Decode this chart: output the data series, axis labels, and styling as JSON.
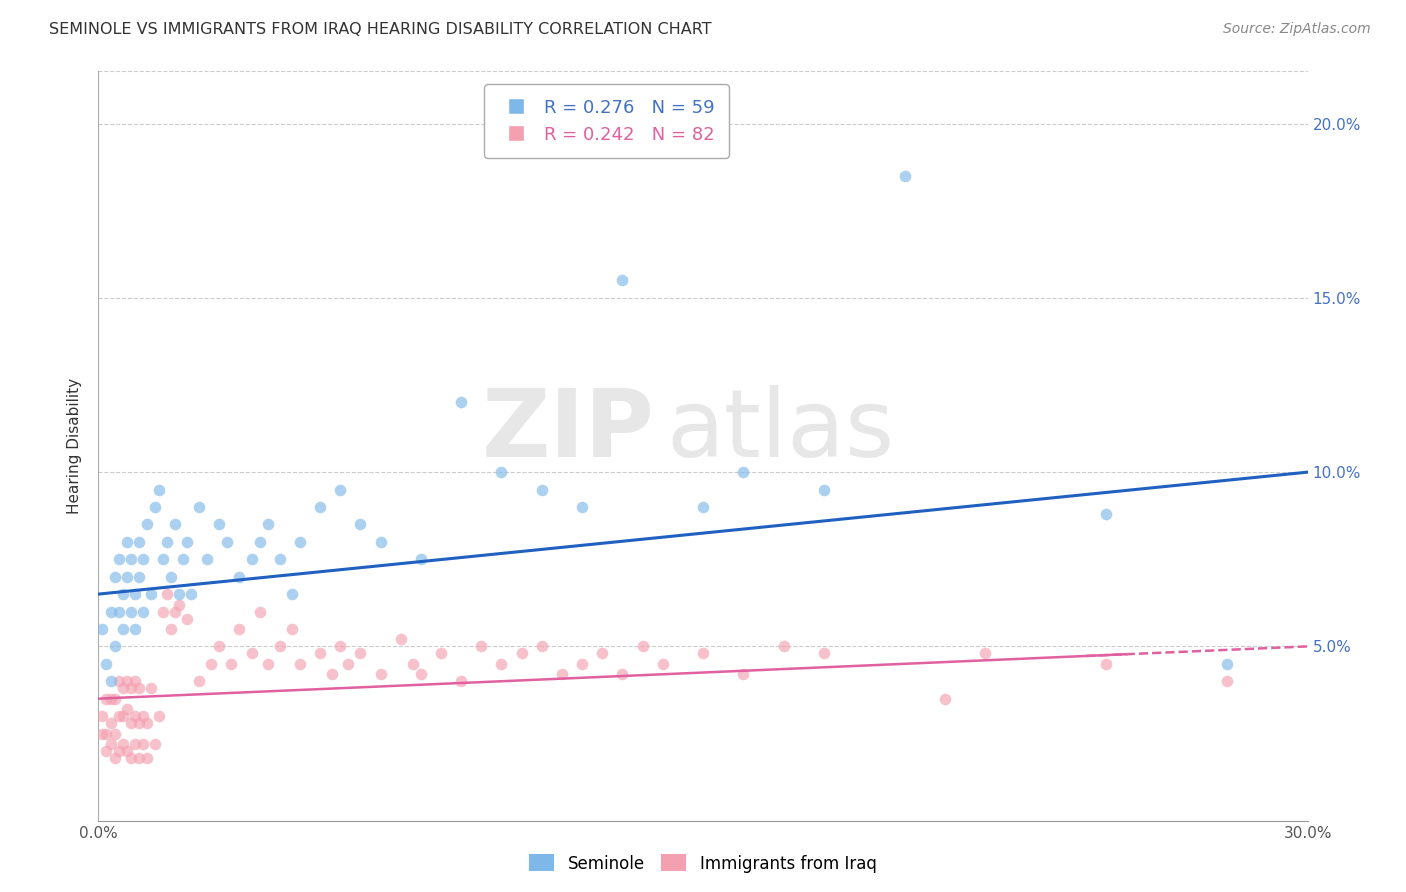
{
  "title": "SEMINOLE VS IMMIGRANTS FROM IRAQ HEARING DISABILITY CORRELATION CHART",
  "source": "Source: ZipAtlas.com",
  "ylabel": "Hearing Disability",
  "xlim": [
    0.0,
    0.3
  ],
  "ylim": [
    0.0,
    0.215
  ],
  "xticks": [
    0.0,
    0.05,
    0.1,
    0.15,
    0.2,
    0.25,
    0.3
  ],
  "yticks": [
    0.0,
    0.05,
    0.1,
    0.15,
    0.2
  ],
  "xtick_labels": [
    "0.0%",
    "",
    "",
    "",
    "",
    "",
    "30.0%"
  ],
  "ytick_right_labels": [
    "",
    "5.0%",
    "10.0%",
    "15.0%",
    "20.0%"
  ],
  "legend_blue_r": "R = 0.276",
  "legend_blue_n": "N = 59",
  "legend_pink_r": "R = 0.242",
  "legend_pink_n": "N = 82",
  "blue_color": "#7EB8E8",
  "pink_color": "#F4A0B0",
  "blue_line_color": "#2060C0",
  "pink_line_color": "#E060A0",
  "watermark_zip": "ZIP",
  "watermark_atlas": "atlas",
  "blue_line_start_y": 0.065,
  "blue_line_end_y": 0.1,
  "pink_line_start_y": 0.035,
  "pink_line_end_y": 0.05,
  "blue_scatter_x": [
    0.001,
    0.002,
    0.003,
    0.003,
    0.004,
    0.004,
    0.005,
    0.005,
    0.006,
    0.006,
    0.007,
    0.007,
    0.008,
    0.008,
    0.009,
    0.009,
    0.01,
    0.01,
    0.011,
    0.011,
    0.012,
    0.013,
    0.014,
    0.015,
    0.016,
    0.017,
    0.018,
    0.019,
    0.02,
    0.021,
    0.022,
    0.023,
    0.025,
    0.027,
    0.03,
    0.032,
    0.035,
    0.038,
    0.04,
    0.042,
    0.045,
    0.048,
    0.05,
    0.055,
    0.06,
    0.065,
    0.07,
    0.08,
    0.09,
    0.1,
    0.11,
    0.12,
    0.13,
    0.15,
    0.16,
    0.18,
    0.2,
    0.25,
    0.28
  ],
  "blue_scatter_y": [
    0.055,
    0.045,
    0.06,
    0.04,
    0.05,
    0.07,
    0.06,
    0.075,
    0.055,
    0.065,
    0.08,
    0.07,
    0.06,
    0.075,
    0.065,
    0.055,
    0.07,
    0.08,
    0.06,
    0.075,
    0.085,
    0.065,
    0.09,
    0.095,
    0.075,
    0.08,
    0.07,
    0.085,
    0.065,
    0.075,
    0.08,
    0.065,
    0.09,
    0.075,
    0.085,
    0.08,
    0.07,
    0.075,
    0.08,
    0.085,
    0.075,
    0.065,
    0.08,
    0.09,
    0.095,
    0.085,
    0.08,
    0.075,
    0.12,
    0.1,
    0.095,
    0.09,
    0.155,
    0.09,
    0.1,
    0.095,
    0.185,
    0.088,
    0.045
  ],
  "pink_scatter_x": [
    0.001,
    0.001,
    0.002,
    0.002,
    0.002,
    0.003,
    0.003,
    0.003,
    0.004,
    0.004,
    0.004,
    0.005,
    0.005,
    0.005,
    0.006,
    0.006,
    0.006,
    0.007,
    0.007,
    0.007,
    0.008,
    0.008,
    0.008,
    0.009,
    0.009,
    0.009,
    0.01,
    0.01,
    0.01,
    0.011,
    0.011,
    0.012,
    0.012,
    0.013,
    0.014,
    0.015,
    0.016,
    0.017,
    0.018,
    0.019,
    0.02,
    0.022,
    0.025,
    0.028,
    0.03,
    0.033,
    0.035,
    0.038,
    0.04,
    0.042,
    0.045,
    0.048,
    0.05,
    0.055,
    0.058,
    0.06,
    0.062,
    0.065,
    0.07,
    0.075,
    0.078,
    0.08,
    0.085,
    0.09,
    0.095,
    0.1,
    0.105,
    0.11,
    0.115,
    0.12,
    0.125,
    0.13,
    0.135,
    0.14,
    0.15,
    0.16,
    0.17,
    0.18,
    0.21,
    0.22,
    0.25,
    0.28
  ],
  "pink_scatter_y": [
    0.03,
    0.025,
    0.02,
    0.025,
    0.035,
    0.022,
    0.028,
    0.035,
    0.018,
    0.025,
    0.035,
    0.02,
    0.03,
    0.04,
    0.022,
    0.03,
    0.038,
    0.02,
    0.032,
    0.04,
    0.018,
    0.028,
    0.038,
    0.022,
    0.03,
    0.04,
    0.018,
    0.028,
    0.038,
    0.022,
    0.03,
    0.018,
    0.028,
    0.038,
    0.022,
    0.03,
    0.06,
    0.065,
    0.055,
    0.06,
    0.062,
    0.058,
    0.04,
    0.045,
    0.05,
    0.045,
    0.055,
    0.048,
    0.06,
    0.045,
    0.05,
    0.055,
    0.045,
    0.048,
    0.042,
    0.05,
    0.045,
    0.048,
    0.042,
    0.052,
    0.045,
    0.042,
    0.048,
    0.04,
    0.05,
    0.045,
    0.048,
    0.05,
    0.042,
    0.045,
    0.048,
    0.042,
    0.05,
    0.045,
    0.048,
    0.042,
    0.05,
    0.048,
    0.035,
    0.048,
    0.045,
    0.04
  ]
}
